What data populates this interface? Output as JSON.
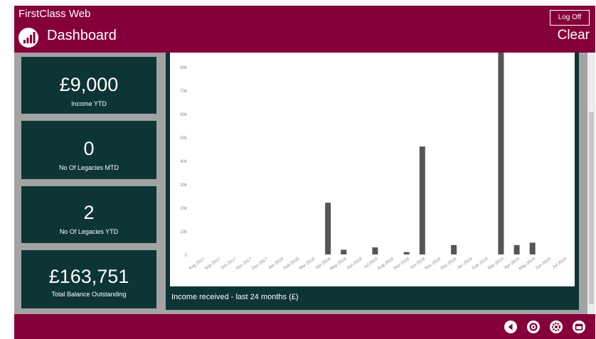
{
  "header": {
    "app_name": "FirstClass Web",
    "page_title": "Dashboard",
    "logoff_label": "Log Off",
    "clear_label": "Clear"
  },
  "tiles": [
    {
      "value": "£9,000",
      "label": "Income YTD"
    },
    {
      "value": "0",
      "label": "No Of Legacies MTD"
    },
    {
      "value": "2",
      "label": "No Of Legacies YTD"
    },
    {
      "value": "£163,751",
      "label": "Total Balance Outstanding"
    }
  ],
  "chart_caption": "Income received - last 24 months (£)",
  "chart_data": {
    "type": "bar",
    "categories": [
      "Aug 2017",
      "Sep 2017",
      "Oct 2017",
      "Nov 2017",
      "Dec 2017",
      "Jan 2018",
      "Feb 2018",
      "Mar 2018",
      "Apr 2018",
      "May 2018",
      "Jun 2018",
      "Jul 2018",
      "Aug 2018",
      "Sep 2018",
      "Oct 2018",
      "Nov 2018",
      "Dec 2018",
      "Jan 2019",
      "Feb 2019",
      "Mar 2019",
      "Apr 2019",
      "May 2019",
      "Jun 2019",
      "Jul 2019"
    ],
    "values": [
      0,
      0,
      0,
      0,
      0,
      0,
      0,
      0,
      22000,
      2000,
      0,
      3000,
      0,
      1000,
      46000,
      0,
      4000,
      0,
      0,
      90000,
      4000,
      5000,
      0,
      0
    ],
    "yticks": [
      0,
      10000,
      20000,
      30000,
      40000,
      50000,
      60000,
      70000,
      80000
    ],
    "ytick_labels": [
      "0",
      "10k",
      "20k",
      "30k",
      "40k",
      "50k",
      "60k",
      "70k",
      "80k"
    ],
    "ylim": [
      0,
      86000
    ],
    "bar_color": "#555555",
    "grid": false
  },
  "footer_icons": [
    "back-arrow-icon",
    "home-icon",
    "settings-icon",
    "exit-icon"
  ],
  "colors": {
    "brand": "#85003b",
    "tile": "#0e3535",
    "content_bg": "#a3a3a3"
  }
}
